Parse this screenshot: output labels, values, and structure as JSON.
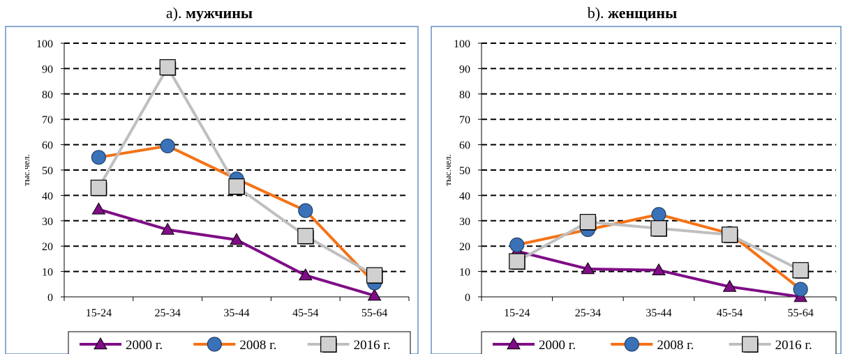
{
  "chart_data": [
    {
      "type": "line",
      "title_prefix": "a).",
      "title_bold": "мужчины",
      "ylabel": "тыс.чел.",
      "ylim": [
        0,
        100
      ],
      "yticks": [
        "0",
        "10",
        "20",
        "30",
        "40",
        "50",
        "60",
        "70",
        "80",
        "90",
        "100"
      ],
      "categories": [
        "15-24",
        "25-34",
        "35-44",
        "45-54",
        "55-64"
      ],
      "grid": "dashed-horizontal",
      "legend_position": "bottom",
      "series": [
        {
          "name": "2000 г.",
          "color": "#7f0d86",
          "marker": "triangle",
          "values": [
            34.5,
            26.5,
            22.5,
            8.5,
            0.5
          ]
        },
        {
          "name": "2008 г.",
          "color": "#f47216",
          "marker": "circle",
          "values": [
            55,
            59.5,
            46.5,
            34,
            5.5
          ]
        },
        {
          "name": "2016 г.",
          "color": "#bfbfbf",
          "marker": "square",
          "values": [
            43,
            90.5,
            43.5,
            24,
            8.5
          ]
        }
      ]
    },
    {
      "type": "line",
      "title_prefix": "b).",
      "title_bold": "женщины",
      "ylabel": "тыс.чел.",
      "ylim": [
        0,
        100
      ],
      "yticks": [
        "0",
        "10",
        "20",
        "30",
        "40",
        "50",
        "60",
        "70",
        "80",
        "90",
        "100"
      ],
      "categories": [
        "15-24",
        "25-34",
        "35-44",
        "45-54",
        "55-64"
      ],
      "grid": "dashed-horizontal",
      "legend_position": "bottom",
      "series": [
        {
          "name": "2000 г.",
          "color": "#7f0d86",
          "marker": "triangle",
          "values": [
            18,
            11,
            10.5,
            4,
            0
          ]
        },
        {
          "name": "2008 г.",
          "color": "#f47216",
          "marker": "circle",
          "values": [
            20.5,
            26.5,
            32.5,
            25,
            3
          ]
        },
        {
          "name": "2016 г.",
          "color": "#bfbfbf",
          "marker": "square",
          "values": [
            14,
            29.5,
            27,
            24.5,
            10.5
          ]
        }
      ]
    }
  ]
}
